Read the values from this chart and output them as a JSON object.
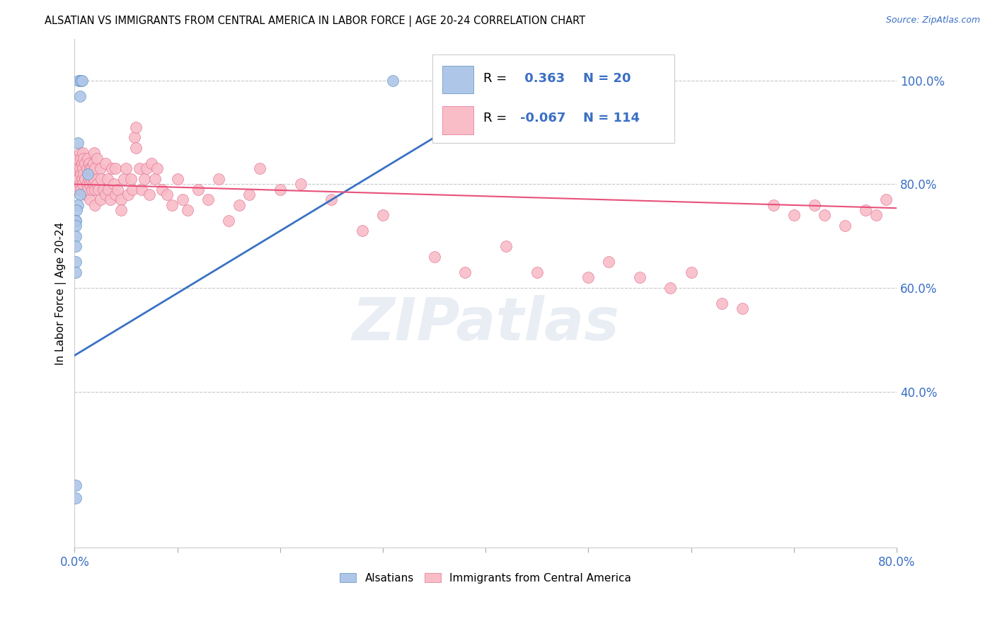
{
  "title": "ALSATIAN VS IMMIGRANTS FROM CENTRAL AMERICA IN LABOR FORCE | AGE 20-24 CORRELATION CHART",
  "source": "Source: ZipAtlas.com",
  "ylabel": "In Labor Force | Age 20-24",
  "xlim": [
    0.0,
    0.8
  ],
  "ylim": [
    0.1,
    1.08
  ],
  "yticks_right": [
    0.4,
    0.6,
    0.8,
    1.0
  ],
  "yticklabels_right": [
    "40.0%",
    "60.0%",
    "80.0%",
    "100.0%"
  ],
  "legend_labels": [
    "Alsatians",
    "Immigrants from Central America"
  ],
  "R_blue": 0.363,
  "N_blue": 20,
  "R_pink": -0.067,
  "N_pink": 114,
  "blue_color": "#AEC6E8",
  "pink_color": "#F9BDC8",
  "blue_edge_color": "#5B8FBF",
  "pink_edge_color": "#E07090",
  "blue_line_color": "#3A72C4",
  "pink_line_color": "#E8507A",
  "watermark": "ZIPatlas",
  "background_color": "#FFFFFF",
  "grid_color": "#C8C8C8",
  "blue_line_x": [
    0.0,
    0.45
  ],
  "blue_line_y": [
    0.47,
    1.01
  ],
  "pink_line_x": [
    0.0,
    0.8
  ],
  "pink_line_y": [
    0.8,
    0.754
  ],
  "blue_scatter_x": [
    0.004,
    0.006,
    0.007,
    0.005,
    0.003,
    0.013,
    0.005,
    0.003,
    0.002,
    0.001,
    0.001,
    0.001,
    0.001,
    0.001,
    0.001,
    0.001,
    0.001,
    0.001,
    0.31,
    0.47
  ],
  "blue_scatter_y": [
    1.0,
    1.0,
    1.0,
    0.97,
    0.88,
    0.82,
    0.78,
    0.76,
    0.75,
    0.73,
    0.73,
    0.72,
    0.7,
    0.68,
    0.65,
    0.63,
    0.22,
    0.195,
    1.0,
    1.0
  ],
  "pink_scatter_x": [
    0.001,
    0.002,
    0.002,
    0.003,
    0.003,
    0.004,
    0.004,
    0.005,
    0.005,
    0.005,
    0.006,
    0.006,
    0.006,
    0.007,
    0.007,
    0.008,
    0.008,
    0.008,
    0.009,
    0.009,
    0.01,
    0.01,
    0.01,
    0.012,
    0.012,
    0.013,
    0.013,
    0.014,
    0.014,
    0.015,
    0.015,
    0.015,
    0.016,
    0.016,
    0.017,
    0.018,
    0.018,
    0.019,
    0.019,
    0.02,
    0.02,
    0.02,
    0.022,
    0.022,
    0.023,
    0.025,
    0.025,
    0.026,
    0.028,
    0.03,
    0.03,
    0.032,
    0.033,
    0.035,
    0.036,
    0.038,
    0.04,
    0.04,
    0.042,
    0.045,
    0.045,
    0.048,
    0.05,
    0.052,
    0.055,
    0.056,
    0.058,
    0.06,
    0.06,
    0.063,
    0.065,
    0.068,
    0.07,
    0.073,
    0.075,
    0.078,
    0.08,
    0.085,
    0.09,
    0.095,
    0.1,
    0.105,
    0.11,
    0.12,
    0.13,
    0.14,
    0.15,
    0.16,
    0.17,
    0.18,
    0.2,
    0.22,
    0.25,
    0.28,
    0.3,
    0.35,
    0.38,
    0.42,
    0.45,
    0.5,
    0.52,
    0.55,
    0.58,
    0.6,
    0.63,
    0.65,
    0.68,
    0.7,
    0.72,
    0.73,
    0.75,
    0.77,
    0.78,
    0.79
  ],
  "pink_scatter_y": [
    0.83,
    0.84,
    0.8,
    0.85,
    0.79,
    0.83,
    0.81,
    0.86,
    0.83,
    0.8,
    0.85,
    0.82,
    0.79,
    0.84,
    0.81,
    0.86,
    0.83,
    0.8,
    0.85,
    0.82,
    0.84,
    0.81,
    0.78,
    0.83,
    0.8,
    0.85,
    0.79,
    0.84,
    0.81,
    0.83,
    0.8,
    0.77,
    0.83,
    0.81,
    0.79,
    0.84,
    0.8,
    0.86,
    0.81,
    0.83,
    0.79,
    0.76,
    0.85,
    0.8,
    0.79,
    0.83,
    0.77,
    0.81,
    0.79,
    0.84,
    0.78,
    0.81,
    0.79,
    0.77,
    0.83,
    0.8,
    0.83,
    0.78,
    0.79,
    0.77,
    0.75,
    0.81,
    0.83,
    0.78,
    0.81,
    0.79,
    0.89,
    0.87,
    0.91,
    0.83,
    0.79,
    0.81,
    0.83,
    0.78,
    0.84,
    0.81,
    0.83,
    0.79,
    0.78,
    0.76,
    0.81,
    0.77,
    0.75,
    0.79,
    0.77,
    0.81,
    0.73,
    0.76,
    0.78,
    0.83,
    0.79,
    0.8,
    0.77,
    0.71,
    0.74,
    0.66,
    0.63,
    0.68,
    0.63,
    0.62,
    0.65,
    0.62,
    0.6,
    0.63,
    0.57,
    0.56,
    0.76,
    0.74,
    0.76,
    0.74,
    0.72,
    0.75,
    0.74,
    0.77
  ]
}
